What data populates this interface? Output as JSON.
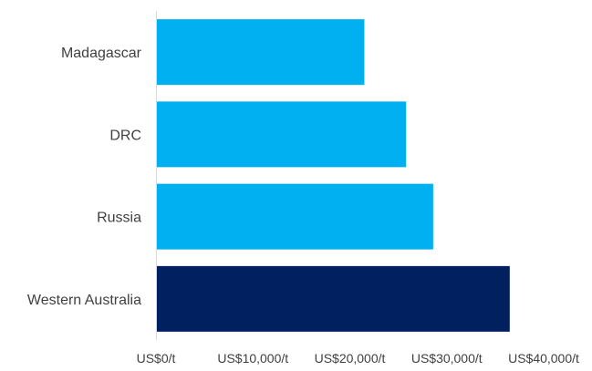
{
  "chart_data": {
    "type": "bar",
    "orientation": "horizontal",
    "categories": [
      "Madagascar",
      "DRC",
      "Russia",
      "Western Australia"
    ],
    "values": [
      21500,
      25800,
      28600,
      36500
    ],
    "xlim": [
      0,
      40000
    ],
    "x_ticks": [
      0,
      10000,
      20000,
      30000,
      40000
    ],
    "x_tick_labels": [
      "US$0/t",
      "US$10,000/t",
      "US$20,000/t",
      "US$30,000/t",
      "US$40,000/t"
    ],
    "grid": false,
    "legend": "none",
    "colors": {
      "default_bar": "#00b0f0",
      "highlight_bar": "#002060",
      "highlight_category": "Western Australia"
    },
    "title": "",
    "xlabel": "",
    "ylabel": ""
  }
}
